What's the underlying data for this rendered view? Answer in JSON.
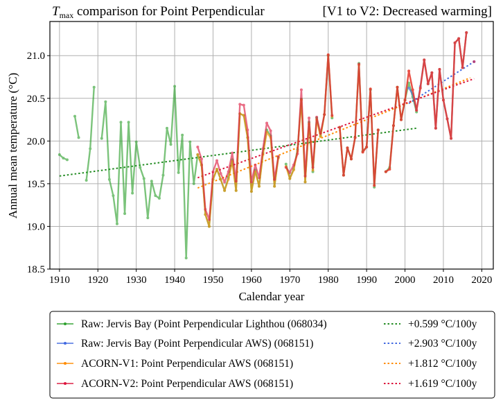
{
  "chart_data": {
    "type": "line",
    "title": {
      "var_main": "T",
      "var_sub": "max",
      "text": " comparison for Point Perpendicular",
      "annotation": "[V1 to V2: Decreased warming]"
    },
    "xlabel": "Calendar year",
    "ylabel": "Annual mean temperature (°C)",
    "xlim": [
      1907.5,
      2023
    ],
    "ylim": [
      18.5,
      21.4
    ],
    "xticks": [
      1910,
      1920,
      1930,
      1940,
      1950,
      1960,
      1970,
      1980,
      1990,
      2000,
      2010,
      2020
    ],
    "yticks": [
      18.5,
      19.0,
      19.5,
      20.0,
      20.5,
      21.0
    ],
    "ytick_labels": [
      "18.5",
      "19.0",
      "19.5",
      "20.0",
      "20.5",
      "21.0"
    ],
    "grid": true,
    "legend_position": "below",
    "series": [
      {
        "name": "Raw: Jervis Bay (Point Perpendicular Lighthou (068034)",
        "color": "#2ca02c",
        "points": [
          [
            1910,
            19.84
          ],
          [
            1911,
            19.8
          ],
          [
            1912,
            19.78
          ],
          [
            1913,
            null
          ],
          [
            1914,
            20.29
          ],
          [
            1915,
            20.04
          ],
          [
            1916,
            null
          ],
          [
            1917,
            19.54
          ],
          [
            1918,
            19.91
          ],
          [
            1919,
            20.63
          ],
          [
            1920,
            null
          ],
          [
            1921,
            20.03
          ],
          [
            1922,
            20.46
          ],
          [
            1923,
            19.55
          ],
          [
            1924,
            19.36
          ],
          [
            1925,
            19.03
          ],
          [
            1926,
            20.22
          ],
          [
            1927,
            19.15
          ],
          [
            1928,
            20.22
          ],
          [
            1929,
            19.39
          ],
          [
            1930,
            19.99
          ],
          [
            1931,
            19.69
          ],
          [
            1932,
            19.56
          ],
          [
            1933,
            19.1
          ],
          [
            1934,
            19.53
          ],
          [
            1935,
            19.36
          ],
          [
            1936,
            19.33
          ],
          [
            1937,
            19.6
          ],
          [
            1938,
            20.15
          ],
          [
            1939,
            19.96
          ],
          [
            1940,
            20.64
          ],
          [
            1941,
            19.63
          ],
          [
            1942,
            20.07
          ],
          [
            1943,
            18.63
          ],
          [
            1944,
            19.99
          ],
          [
            1945,
            19.5
          ],
          [
            1946,
            19.84
          ],
          [
            1947,
            19.72
          ],
          [
            1948,
            19.14
          ],
          [
            1949,
            19.0
          ],
          [
            1950,
            19.55
          ],
          [
            1951,
            19.67
          ],
          [
            1952,
            19.55
          ],
          [
            1953,
            19.42
          ],
          [
            1954,
            19.57
          ],
          [
            1955,
            19.78
          ],
          [
            1956,
            19.42
          ],
          [
            1957,
            20.32
          ],
          [
            1958,
            20.3
          ],
          [
            1959,
            20.04
          ],
          [
            1960,
            19.41
          ],
          [
            1961,
            19.66
          ],
          [
            1962,
            19.47
          ],
          [
            1963,
            19.86
          ],
          [
            1964,
            20.13
          ],
          [
            1965,
            20.06
          ],
          [
            1966,
            19.47
          ],
          [
            1967,
            19.81
          ],
          [
            1968,
            null
          ],
          [
            1969,
            19.73
          ],
          [
            1970,
            19.56
          ],
          [
            1971,
            19.67
          ],
          [
            1972,
            19.9
          ],
          [
            1973,
            20.49
          ],
          [
            1974,
            19.52
          ],
          [
            1975,
            20.22
          ],
          [
            1976,
            19.64
          ],
          [
            1977,
            20.27
          ],
          [
            1978,
            20.06
          ],
          [
            1979,
            20.31
          ],
          [
            1980,
            21.0
          ],
          [
            1981,
            20.27
          ],
          [
            1982,
            null
          ],
          [
            1983,
            20.16
          ],
          [
            1984,
            19.6
          ],
          [
            1985,
            19.92
          ],
          [
            1986,
            19.79
          ],
          [
            1987,
            20.04
          ],
          [
            1988,
            20.91
          ],
          [
            1989,
            19.88
          ],
          [
            1990,
            19.93
          ],
          [
            1991,
            20.6
          ],
          [
            1992,
            19.46
          ],
          [
            1993,
            20.13
          ],
          [
            1994,
            null
          ],
          [
            1995,
            19.64
          ],
          [
            1996,
            19.69
          ],
          [
            1997,
            20.18
          ],
          [
            1998,
            20.63
          ],
          [
            1999,
            20.25
          ],
          [
            2000,
            20.48
          ],
          [
            2001,
            20.68
          ],
          [
            2002,
            20.52
          ],
          [
            2003,
            20.34
          ]
        ]
      },
      {
        "name": "Raw: Jervis Bay (Point Perpendicular AWS) (068151)",
        "color": "#4169e1",
        "points": [
          [
            2001,
            20.62
          ],
          [
            2002,
            20.55
          ],
          [
            2003,
            20.36
          ],
          [
            2004,
            20.64
          ],
          [
            2005,
            20.95
          ],
          [
            2006,
            20.67
          ],
          [
            2007,
            20.8
          ],
          [
            2008,
            20.15
          ],
          [
            2009,
            20.84
          ],
          [
            2010,
            20.48
          ],
          [
            2011,
            20.26
          ],
          [
            2012,
            20.03
          ],
          [
            2013,
            21.15
          ],
          [
            2014,
            21.2
          ],
          [
            2015,
            20.86
          ],
          [
            2016,
            21.27
          ],
          [
            2017,
            null
          ],
          [
            2018,
            20.93
          ]
        ]
      },
      {
        "name": "ACORN-V1: Point Perpendicular AWS (068151)",
        "color": "#ff8c00",
        "points": [
          [
            1946,
            19.84
          ],
          [
            1947,
            19.72
          ],
          [
            1948,
            19.14
          ],
          [
            1949,
            19.0
          ],
          [
            1950,
            19.55
          ],
          [
            1951,
            19.67
          ],
          [
            1952,
            19.55
          ],
          [
            1953,
            19.42
          ],
          [
            1954,
            19.55
          ],
          [
            1955,
            19.76
          ],
          [
            1956,
            19.42
          ],
          [
            1957,
            20.32
          ],
          [
            1958,
            20.3
          ],
          [
            1959,
            20.04
          ],
          [
            1960,
            19.41
          ],
          [
            1961,
            19.64
          ],
          [
            1962,
            19.47
          ],
          [
            1963,
            19.84
          ],
          [
            1964,
            20.1
          ],
          [
            1965,
            20.04
          ],
          [
            1966,
            19.47
          ],
          [
            1967,
            19.8
          ],
          [
            1968,
            null
          ],
          [
            1969,
            19.7
          ],
          [
            1970,
            19.56
          ],
          [
            1971,
            19.66
          ],
          [
            1972,
            19.88
          ],
          [
            1973,
            20.48
          ],
          [
            1974,
            19.52
          ],
          [
            1975,
            20.2
          ],
          [
            1976,
            19.66
          ],
          [
            1977,
            20.25
          ],
          [
            1978,
            20.05
          ],
          [
            1979,
            20.31
          ],
          [
            1980,
            21.01
          ],
          [
            1981,
            20.29
          ],
          [
            1982,
            null
          ],
          [
            1983,
            20.16
          ],
          [
            1984,
            19.6
          ],
          [
            1985,
            19.92
          ],
          [
            1986,
            19.79
          ],
          [
            1987,
            20.04
          ],
          [
            1988,
            20.89
          ],
          [
            1989,
            19.87
          ],
          [
            1990,
            19.93
          ],
          [
            1991,
            20.61
          ],
          [
            1992,
            19.48
          ],
          [
            1993,
            20.13
          ],
          [
            1994,
            null
          ],
          [
            1995,
            19.64
          ],
          [
            1996,
            19.67
          ],
          [
            1997,
            20.18
          ],
          [
            1998,
            20.63
          ],
          [
            1999,
            20.25
          ],
          [
            2000,
            20.48
          ],
          [
            2001,
            20.82
          ],
          [
            2002,
            20.6
          ],
          [
            2003,
            20.36
          ],
          [
            2004,
            20.62
          ],
          [
            2005,
            20.95
          ],
          [
            2006,
            20.67
          ],
          [
            2007,
            20.8
          ],
          [
            2008,
            20.15
          ],
          [
            2009,
            20.84
          ],
          [
            2010,
            20.48
          ],
          [
            2011,
            20.26
          ],
          [
            2012,
            20.03
          ],
          [
            2013,
            21.15
          ],
          [
            2014,
            21.2
          ],
          [
            2015,
            20.86
          ],
          [
            2016,
            21.27
          ]
        ]
      },
      {
        "name": "ACORN-V2: Point Perpendicular AWS (068151)",
        "color": "#dc143c",
        "points": [
          [
            1946,
            19.93
          ],
          [
            1947,
            19.79
          ],
          [
            1948,
            19.2
          ],
          [
            1949,
            19.08
          ],
          [
            1950,
            19.64
          ],
          [
            1951,
            19.77
          ],
          [
            1952,
            19.62
          ],
          [
            1953,
            19.52
          ],
          [
            1954,
            19.64
          ],
          [
            1955,
            19.86
          ],
          [
            1956,
            19.53
          ],
          [
            1957,
            20.43
          ],
          [
            1958,
            20.42
          ],
          [
            1959,
            20.13
          ],
          [
            1960,
            19.52
          ],
          [
            1961,
            19.72
          ],
          [
            1962,
            19.57
          ],
          [
            1963,
            19.91
          ],
          [
            1964,
            20.21
          ],
          [
            1965,
            20.12
          ],
          [
            1966,
            19.55
          ],
          [
            1967,
            19.82
          ],
          [
            1968,
            null
          ],
          [
            1969,
            19.69
          ],
          [
            1970,
            19.63
          ],
          [
            1971,
            19.72
          ],
          [
            1972,
            19.85
          ],
          [
            1973,
            20.6
          ],
          [
            1974,
            19.59
          ],
          [
            1975,
            20.27
          ],
          [
            1976,
            19.69
          ],
          [
            1977,
            20.28
          ],
          [
            1978,
            20.09
          ],
          [
            1979,
            20.31
          ],
          [
            1980,
            21.01
          ],
          [
            1981,
            20.3
          ],
          [
            1982,
            null
          ],
          [
            1983,
            20.16
          ],
          [
            1984,
            19.6
          ],
          [
            1985,
            19.92
          ],
          [
            1986,
            19.79
          ],
          [
            1987,
            20.04
          ],
          [
            1988,
            20.9
          ],
          [
            1989,
            19.87
          ],
          [
            1990,
            19.93
          ],
          [
            1991,
            20.61
          ],
          [
            1992,
            19.48
          ],
          [
            1993,
            20.13
          ],
          [
            1994,
            null
          ],
          [
            1995,
            19.64
          ],
          [
            1996,
            19.67
          ],
          [
            1997,
            20.18
          ],
          [
            1998,
            20.63
          ],
          [
            1999,
            20.25
          ],
          [
            2000,
            20.48
          ],
          [
            2001,
            20.82
          ],
          [
            2002,
            20.6
          ],
          [
            2003,
            20.36
          ],
          [
            2004,
            20.62
          ],
          [
            2005,
            20.95
          ],
          [
            2006,
            20.67
          ],
          [
            2007,
            20.8
          ],
          [
            2008,
            20.15
          ],
          [
            2009,
            20.84
          ],
          [
            2010,
            20.48
          ],
          [
            2011,
            20.26
          ],
          [
            2012,
            20.03
          ],
          [
            2013,
            21.15
          ],
          [
            2014,
            21.2
          ],
          [
            2015,
            20.86
          ],
          [
            2016,
            21.27
          ],
          [
            2017,
            null
          ],
          [
            2018,
            20.93
          ]
        ]
      }
    ],
    "trends": [
      {
        "label": "+0.599 °C/100y",
        "color": "#228b22",
        "x": [
          1910,
          2003
        ],
        "y": [
          19.59,
          20.15
        ]
      },
      {
        "label": "+2.903 °C/100y",
        "color": "#4169e1",
        "x": [
          2001,
          2018
        ],
        "y": [
          20.44,
          20.93
        ]
      },
      {
        "label": "+1.812 °C/100y",
        "color": "#ff8c00",
        "x": [
          1946,
          2017
        ],
        "y": [
          19.45,
          20.74
        ]
      },
      {
        "label": "+1.619 °C/100y",
        "color": "#dc143c",
        "x": [
          1946,
          2018
        ],
        "y": [
          19.57,
          20.73
        ]
      }
    ]
  }
}
